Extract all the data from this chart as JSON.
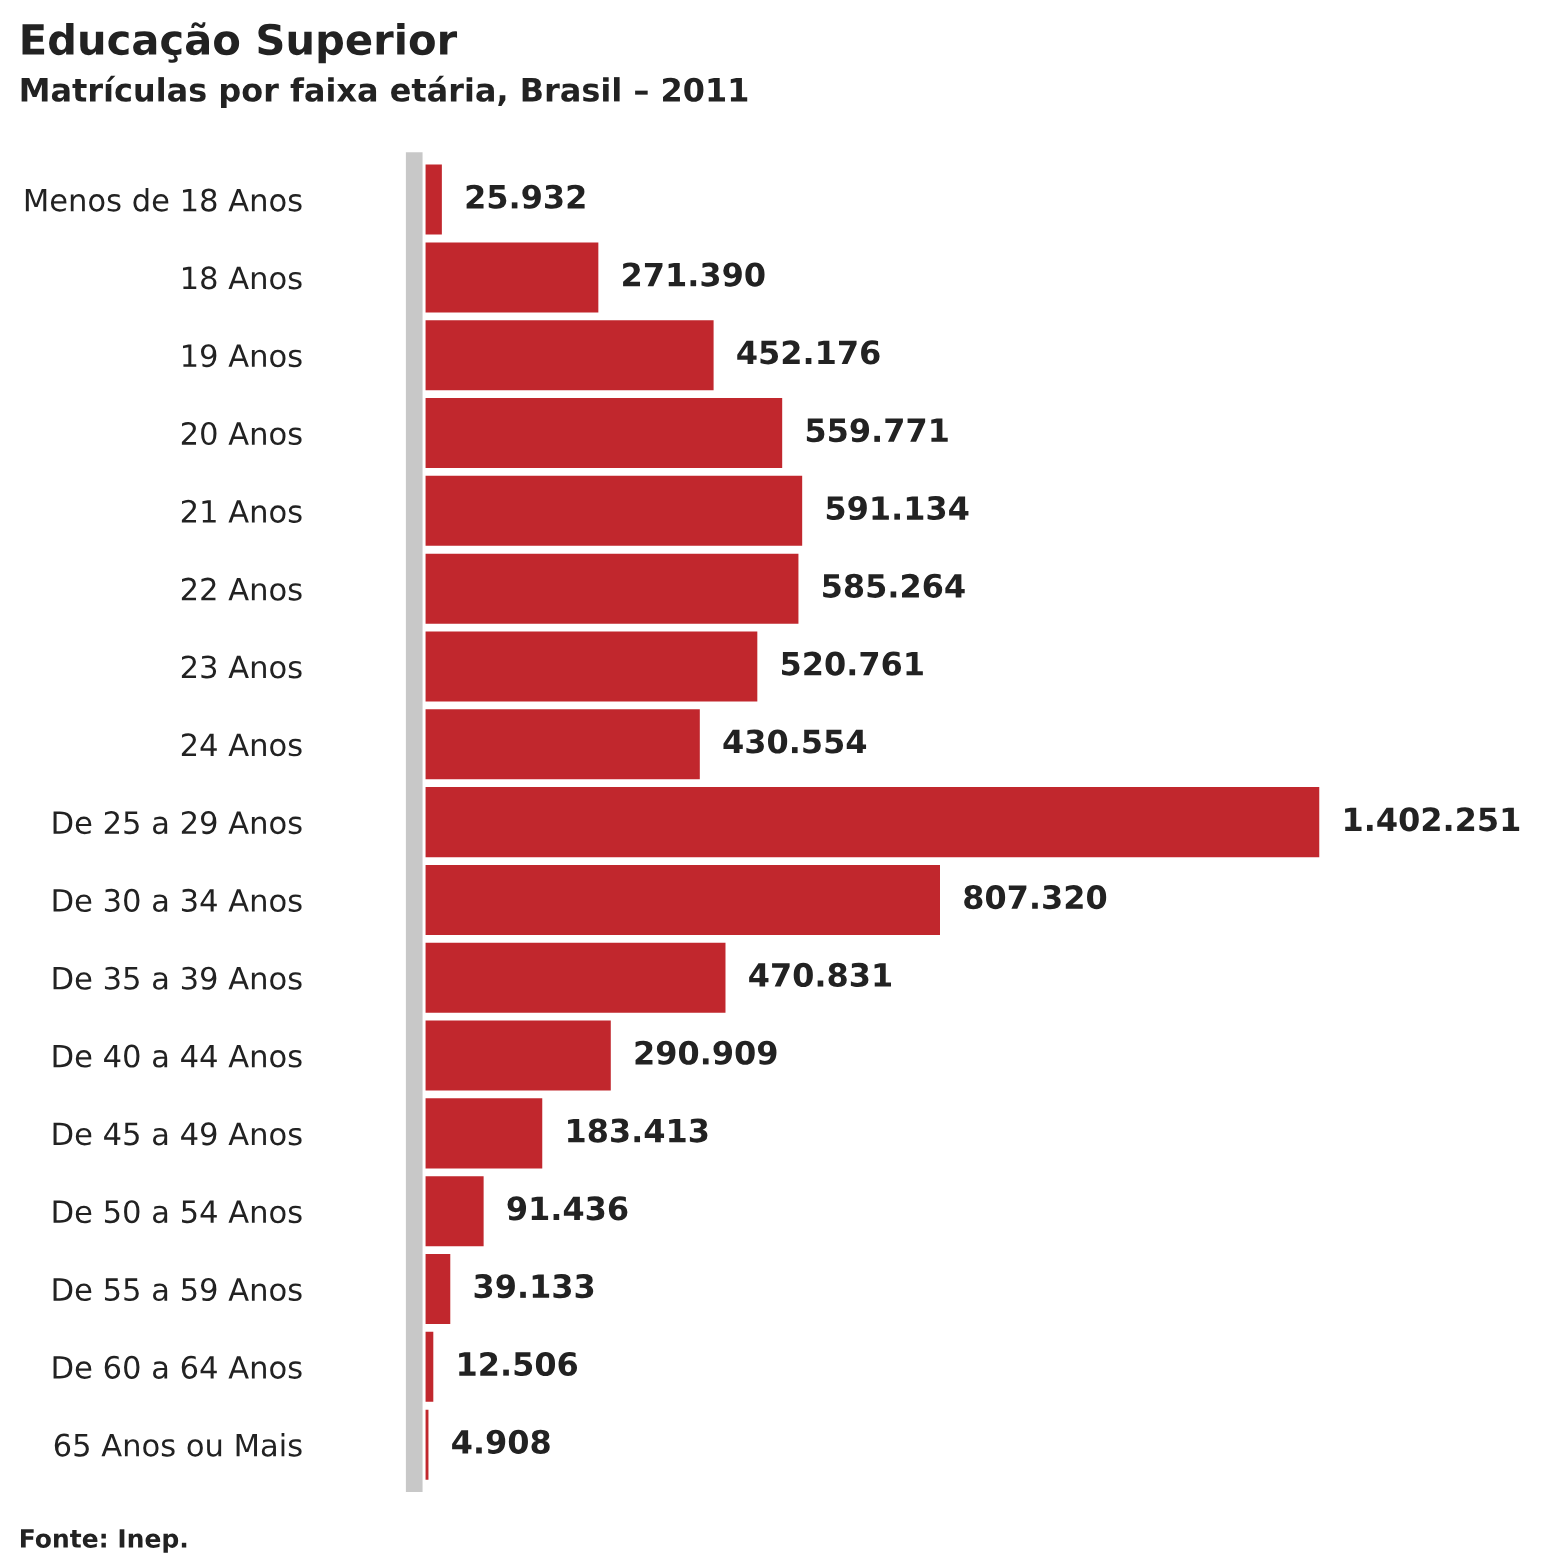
{
  "chart_data": {
    "type": "bar",
    "orientation": "horizontal",
    "title": "Educação Superior",
    "subtitle": "Matrículas por faixa etária, Brasil – 2011",
    "categories": [
      "Menos de 18 Anos",
      "18 Anos",
      "19 Anos",
      "20 Anos",
      "21 Anos",
      "22 Anos",
      "23 Anos",
      "24 Anos",
      "De 25 a 29 Anos",
      "De 30 a 34 Anos",
      "De 35 a 39 Anos",
      "De 40 a 44 Anos",
      "De 45 a 49 Anos",
      "De 50 a 54 Anos",
      "De 55 a 59 Anos",
      "De 60 a 64 Anos",
      "65 Anos ou Mais"
    ],
    "values": [
      25932,
      271390,
      452176,
      559771,
      591134,
      585264,
      520761,
      430554,
      1402251,
      807320,
      470831,
      290909,
      183413,
      91436,
      39133,
      12506,
      4908
    ],
    "value_labels": [
      "25.932",
      "271.390",
      "452.176",
      "559.771",
      "591.134",
      "585.264",
      "520.761",
      "430.554",
      "1.402.251",
      "807.320",
      "470.831",
      "290.909",
      "183.413",
      "91.436",
      "39.133",
      "12.506",
      "4.908"
    ],
    "color": "#c1272d",
    "tick_labels": "y",
    "grid": false,
    "legend": false,
    "annotations": [
      "Fonte: Inep."
    ]
  }
}
